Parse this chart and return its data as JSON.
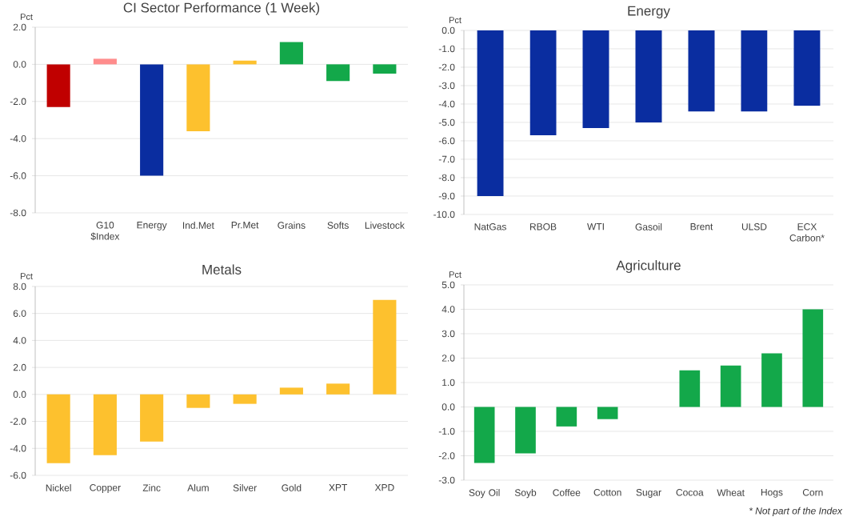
{
  "chart_data": [
    {
      "type": "bar",
      "title": "CI Sector Performance (1 Week)",
      "ylabel": "Pct",
      "grid": "y",
      "categories": [
        null,
        "G10 $Index",
        "Energy",
        "Ind.Met",
        "Pr.Met",
        "Grains",
        "Softs",
        "Livestock"
      ],
      "values": [
        -2.3,
        0.3,
        -6.0,
        -3.6,
        0.2,
        1.2,
        -0.9,
        -0.5
      ],
      "colors": [
        "#c00000",
        "#ff8c8c",
        "#0a2da0",
        "#fdc12e",
        "#fdc12e",
        "#13a84a",
        "#13a84a",
        "#13a84a"
      ],
      "ylim": [
        -8,
        2
      ],
      "yticks": [
        {
          "value": -8,
          "label": "-8.0"
        },
        {
          "value": -6,
          "label": "-6.0"
        },
        {
          "value": -4,
          "label": "-4.0"
        },
        {
          "value": -2,
          "label": "-2.0"
        },
        {
          "value": 0,
          "label": "0.0"
        },
        {
          "value": 2,
          "label": "2.0"
        }
      ]
    },
    {
      "type": "bar",
      "title": "Energy",
      "ylabel": "Pct",
      "grid": "y",
      "categories": [
        "NatGas",
        "RBOB",
        "WTI",
        "Gasoil",
        "Brent",
        "ULSD",
        "ECX Carbon*"
      ],
      "values": [
        -9.0,
        -5.7,
        -5.3,
        -5.0,
        -4.4,
        -4.4,
        -4.1
      ],
      "color": "#0a2da0",
      "ylim": [
        -10,
        0
      ],
      "yticks": [
        {
          "value": -10,
          "label": "-10.0"
        },
        {
          "value": -9,
          "label": "-9.0"
        },
        {
          "value": -8,
          "label": "-8.0"
        },
        {
          "value": -7,
          "label": "-7.0"
        },
        {
          "value": -6,
          "label": "-6.0"
        },
        {
          "value": -5,
          "label": "-5.0"
        },
        {
          "value": -4,
          "label": "-4.0"
        },
        {
          "value": -3,
          "label": "-3.0"
        },
        {
          "value": -2,
          "label": "-2.0"
        },
        {
          "value": -1,
          "label": "-1.0"
        },
        {
          "value": 0,
          "label": "0.0"
        }
      ]
    },
    {
      "type": "bar",
      "title": "Metals",
      "ylabel": "Pct",
      "grid": "y",
      "categories": [
        "Nickel",
        "Copper",
        "Zinc",
        "Alum",
        "Silver",
        "Gold",
        "XPT",
        "XPD"
      ],
      "values": [
        -5.1,
        -4.5,
        -3.5,
        -1.0,
        -0.7,
        0.5,
        0.8,
        7.0
      ],
      "color": "#fdc12e",
      "ylim": [
        -6,
        8
      ],
      "yticks": [
        {
          "value": -6,
          "label": "-6.0"
        },
        {
          "value": -4,
          "label": "-4.0"
        },
        {
          "value": -2,
          "label": "-2.0"
        },
        {
          "value": 0,
          "label": "0.0"
        },
        {
          "value": 2,
          "label": "2.0"
        },
        {
          "value": 4,
          "label": "4.0"
        },
        {
          "value": 6,
          "label": "6.0"
        },
        {
          "value": 8,
          "label": "8.0"
        }
      ]
    },
    {
      "type": "bar",
      "title": "Agriculture",
      "ylabel": "Pct",
      "grid": "y",
      "categories": [
        "Soy Oil",
        "Soyb",
        "Coffee",
        "Cotton",
        "Sugar",
        "Cocoa",
        "Wheat",
        "Hogs",
        "Corn"
      ],
      "values": [
        -2.3,
        -1.9,
        -0.8,
        -0.5,
        0.0,
        1.5,
        1.7,
        2.2,
        4.0
      ],
      "color": "#13a84a",
      "ylim": [
        -3,
        5
      ],
      "yticks": [
        {
          "value": -3,
          "label": "-3.0"
        },
        {
          "value": -2,
          "label": "-2.0"
        },
        {
          "value": -1,
          "label": "-1.0"
        },
        {
          "value": 0,
          "label": "0.0"
        },
        {
          "value": 1,
          "label": "1.0"
        },
        {
          "value": 2,
          "label": "2.0"
        },
        {
          "value": 3,
          "label": "3.0"
        },
        {
          "value": 4,
          "label": "4.0"
        },
        {
          "value": 5,
          "label": "5.0"
        }
      ],
      "annotations": [
        "* Not part of the Index"
      ]
    }
  ]
}
